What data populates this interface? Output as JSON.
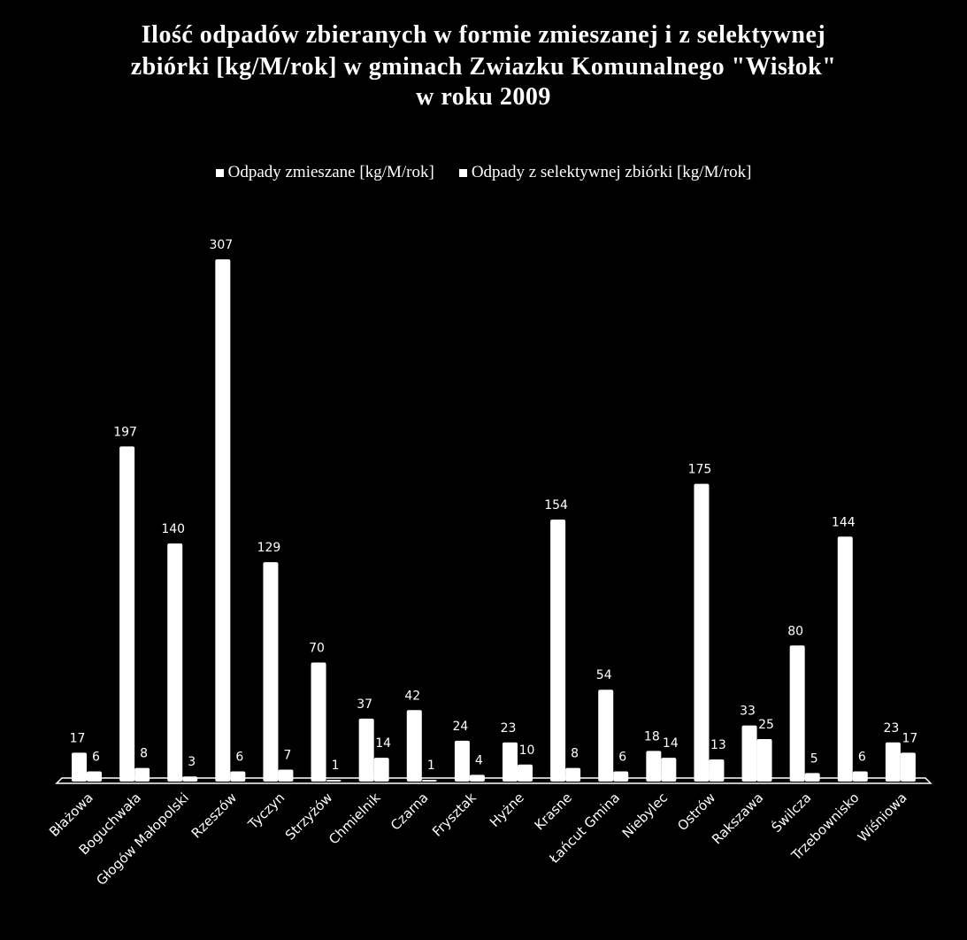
{
  "chart_data": {
    "type": "bar",
    "title_lines": [
      "Ilość odpadów zbieranych w formie zmieszanej i z selektywnej",
      "zbiórki [kg/M/rok] w gminach Zwiazku Komunalnego \"Wisłok\"",
      "w roku 2009"
    ],
    "categories": [
      "Błażowa",
      "Boguchwała",
      "Głogów Małopolski",
      "Rzeszów",
      "Tyczyn",
      "Strzyżów",
      "Chmielnik",
      "Czarna",
      "Frysztak",
      "Hyżne",
      "Krasne",
      "Łańcut Gmina",
      "Niebylec",
      "Ostrów",
      "Rakszawa",
      "Świlcza",
      "Trzebownisko",
      "Wiśniowa"
    ],
    "series": [
      {
        "name": "Odpady zmieszane [kg/M/rok]",
        "values": [
          17,
          197,
          140,
          307,
          129,
          70,
          37,
          42,
          24,
          23,
          154,
          54,
          18,
          175,
          33,
          80,
          144,
          23
        ]
      },
      {
        "name": "Odpady z selektywnej zbiórki [kg/M/rok]",
        "values": [
          6,
          8,
          3,
          6,
          7,
          1,
          14,
          1,
          4,
          10,
          8,
          6,
          14,
          13,
          25,
          5,
          6,
          17
        ]
      }
    ],
    "ylim": [
      0,
      345
    ],
    "grid": false,
    "legend_position": "top",
    "colors": {
      "background": "#000000",
      "bars": "#ffffff",
      "text": "#ffffff"
    }
  }
}
